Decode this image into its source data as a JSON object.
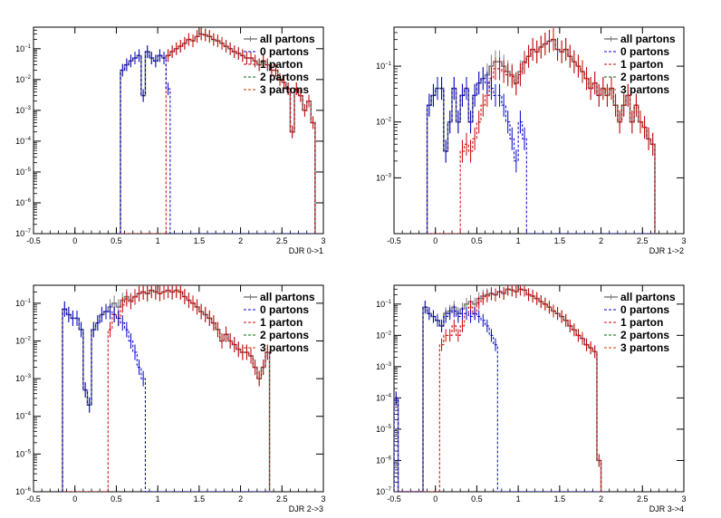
{
  "colors": {
    "all": "#808080",
    "p0": "#0000cc",
    "p1": "#cc0000",
    "p2": "#006600",
    "p3": "#cc3300"
  },
  "chart_data": [
    {
      "type": "line",
      "xlabel": "DJR 0->1",
      "xlim": [
        -0.5,
        3
      ],
      "ylim": [
        1e-07,
        0.5
      ],
      "yscale": "log",
      "xticks": [
        "-0.5",
        "0",
        "0.5",
        "1",
        "1.5",
        "2",
        "2.5",
        "3"
      ],
      "yticks": [
        "10^-7",
        "10^-6",
        "10^-5",
        "10^-4",
        "10^-3",
        "10^-2",
        "10^-1"
      ],
      "legend": [
        "all partons",
        "0 partons",
        "1 parton",
        "2 partons",
        "3 partons"
      ],
      "legend_position": "top-right",
      "bin_edges": [
        0.55,
        0.6,
        0.65,
        0.7,
        0.75,
        0.8,
        0.85,
        0.9,
        0.95,
        1.0,
        1.05,
        1.1,
        1.15,
        1.2,
        1.25,
        1.3,
        1.35,
        1.4,
        1.45,
        1.5,
        1.55,
        1.6,
        1.65,
        1.7,
        1.75,
        1.8,
        1.85,
        1.9,
        1.95,
        2.0,
        2.05,
        2.1,
        2.15,
        2.2,
        2.25,
        2.3,
        2.35,
        2.4,
        2.45,
        2.5,
        2.55,
        2.6,
        2.65,
        2.7,
        2.75,
        2.8,
        2.85,
        2.9
      ],
      "series": [
        {
          "name": "all partons",
          "values": [
            0.02,
            0.03,
            0.04,
            0.05,
            0.06,
            0.003,
            0.08,
            0.05,
            0.04,
            0.06,
            0.05,
            0.06,
            0.08,
            0.1,
            0.12,
            0.15,
            0.2,
            0.18,
            0.25,
            0.3,
            0.28,
            0.25,
            0.2,
            0.18,
            0.15,
            0.12,
            0.1,
            0.08,
            0.07,
            0.06,
            0.05,
            0.05,
            0.04,
            0.03,
            0.04,
            0.03,
            0.02,
            0.02,
            0.01,
            0.008,
            0.005,
            0.0002,
            0.005,
            0.003,
            0.001,
            0.002,
            0.0004
          ]
        },
        {
          "name": "0 partons",
          "values": [
            0.02,
            0.03,
            0.04,
            0.05,
            0.06,
            0.003,
            0.08,
            0.05,
            0.04,
            0.06,
            0.05,
            0.005,
            0,
            0,
            0,
            0,
            0,
            0,
            0,
            0,
            0,
            0,
            0,
            0,
            0,
            0,
            0,
            0,
            0,
            0,
            0,
            0,
            0,
            0,
            0,
            0,
            0,
            0,
            0,
            0,
            0,
            0,
            0,
            0,
            0,
            0,
            0
          ]
        },
        {
          "name": "1 parton",
          "values": [
            0,
            0,
            0,
            0,
            0,
            0,
            0,
            0,
            0,
            0,
            0,
            0.06,
            0.08,
            0.1,
            0.12,
            0.15,
            0.2,
            0.18,
            0.25,
            0.3,
            0.28,
            0.25,
            0.2,
            0.18,
            0.15,
            0.12,
            0.1,
            0.08,
            0.07,
            0.06,
            0.05,
            0.05,
            0.04,
            0.03,
            0.04,
            0.03,
            0.02,
            0.02,
            0.01,
            0.008,
            0.005,
            0.0002,
            0.005,
            0.003,
            0.001,
            0.002,
            0.0004
          ]
        }
      ]
    },
    {
      "type": "line",
      "xlabel": "DJR 1->2",
      "xlim": [
        -0.5,
        3
      ],
      "ylim": [
        0.0001,
        0.5
      ],
      "yscale": "log",
      "xticks": [
        "-0.5",
        "0",
        "0.5",
        "1",
        "1.5",
        "2",
        "2.5",
        "3"
      ],
      "yticks": [
        "10^-3",
        "10^-2",
        "10^-1"
      ],
      "legend": [
        "all partons",
        "0 partons",
        "1 parton",
        "2 partons",
        "3 partons"
      ],
      "legend_position": "top-right",
      "bin_edges": [
        -0.1,
        -0.05,
        0.0,
        0.05,
        0.1,
        0.15,
        0.2,
        0.25,
        0.3,
        0.35,
        0.4,
        0.45,
        0.5,
        0.55,
        0.6,
        0.65,
        0.7,
        0.75,
        0.8,
        0.85,
        0.9,
        0.95,
        1.0,
        1.05,
        1.1,
        1.15,
        1.2,
        1.25,
        1.3,
        1.35,
        1.4,
        1.45,
        1.5,
        1.55,
        1.6,
        1.65,
        1.7,
        1.75,
        1.8,
        1.85,
        1.9,
        1.95,
        2.0,
        2.05,
        2.1,
        2.15,
        2.2,
        2.25,
        2.3,
        2.35,
        2.4,
        2.45,
        2.5,
        2.55,
        2.6,
        2.65
      ],
      "series": [
        {
          "name": "all partons",
          "values": [
            0.02,
            0.03,
            0.04,
            0.04,
            0.003,
            0.01,
            0.04,
            0.01,
            0.03,
            0.04,
            0.01,
            0.03,
            0.05,
            0.06,
            0.07,
            0.1,
            0.12,
            0.12,
            0.1,
            0.08,
            0.07,
            0.05,
            0.08,
            0.12,
            0.15,
            0.2,
            0.18,
            0.22,
            0.25,
            0.28,
            0.3,
            0.2,
            0.18,
            0.2,
            0.15,
            0.12,
            0.1,
            0.08,
            0.06,
            0.04,
            0.05,
            0.03,
            0.04,
            0.03,
            0.04,
            0.02,
            0.01,
            0.02,
            0.03,
            0.01,
            0.02,
            0.01,
            0.008,
            0.005,
            0.004
          ]
        },
        {
          "name": "0 partons",
          "values": [
            0.02,
            0.03,
            0.04,
            0.04,
            0.003,
            0.01,
            0.04,
            0.01,
            0.03,
            0.04,
            0.01,
            0.03,
            0.05,
            0.06,
            0.05,
            0.04,
            0.03,
            0.03,
            0.02,
            0.01,
            0.005,
            0.002,
            0.01,
            0.005,
            0,
            0,
            0,
            0,
            0,
            0,
            0,
            0,
            0,
            0,
            0,
            0,
            0,
            0,
            0,
            0,
            0,
            0,
            0,
            0,
            0,
            0,
            0,
            0,
            0,
            0,
            0,
            0,
            0,
            0,
            0
          ]
        },
        {
          "name": "1 parton",
          "values": [
            0,
            0,
            0,
            0,
            0,
            0,
            0,
            0,
            0.003,
            0.004,
            0.003,
            0.005,
            0.01,
            0.02,
            0.03,
            0.06,
            0.09,
            0.09,
            0.08,
            0.07,
            0.065,
            0.048,
            0.07,
            0.115,
            0.15,
            0.2,
            0.18,
            0.22,
            0.25,
            0.28,
            0.3,
            0.2,
            0.18,
            0.2,
            0.15,
            0.12,
            0.1,
            0.08,
            0.06,
            0.04,
            0.05,
            0.03,
            0.04,
            0.03,
            0.04,
            0.02,
            0.01,
            0.02,
            0.03,
            0.01,
            0.02,
            0.01,
            0.008,
            0.005,
            0.004
          ]
        }
      ]
    },
    {
      "type": "line",
      "xlabel": "DJR 2->3",
      "xlim": [
        -0.5,
        3
      ],
      "ylim": [
        1e-06,
        0.3
      ],
      "yscale": "log",
      "xticks": [
        "-0.5",
        "0",
        "0.5",
        "1",
        "1.5",
        "2",
        "2.5",
        "3"
      ],
      "yticks": [
        "10^-6",
        "10^-5",
        "10^-4",
        "10^-3",
        "10^-2",
        "10^-1"
      ],
      "legend": [
        "all partons",
        "0 partons",
        "1 parton",
        "2 partons",
        "3 partons"
      ],
      "legend_position": "top-right",
      "bin_edges": [
        -0.15,
        -0.1,
        -0.05,
        0.0,
        0.05,
        0.1,
        0.15,
        0.2,
        0.25,
        0.3,
        0.35,
        0.4,
        0.45,
        0.5,
        0.55,
        0.6,
        0.65,
        0.7,
        0.75,
        0.8,
        0.85,
        0.9,
        0.95,
        1.0,
        1.05,
        1.1,
        1.15,
        1.2,
        1.25,
        1.3,
        1.35,
        1.4,
        1.45,
        1.5,
        1.55,
        1.6,
        1.65,
        1.7,
        1.75,
        1.8,
        1.85,
        1.9,
        1.95,
        2.0,
        2.05,
        2.1,
        2.15,
        2.2,
        2.25,
        2.3,
        2.35
      ],
      "series": [
        {
          "name": "all partons",
          "values": [
            0.07,
            0.05,
            0.04,
            0.04,
            0.02,
            0.0005,
            0.0002,
            0.02,
            0.03,
            0.05,
            0.06,
            0.08,
            0.1,
            0.08,
            0.12,
            0.15,
            0.12,
            0.15,
            0.18,
            0.2,
            0.18,
            0.22,
            0.2,
            0.18,
            0.2,
            0.22,
            0.2,
            0.22,
            0.2,
            0.15,
            0.12,
            0.1,
            0.08,
            0.06,
            0.05,
            0.04,
            0.03,
            0.02,
            0.01,
            0.015,
            0.01,
            0.008,
            0.006,
            0.005,
            0.005,
            0.004,
            0.002,
            0.001,
            0.002,
            0.005
          ]
        },
        {
          "name": "0 partons",
          "values": [
            0.07,
            0.05,
            0.04,
            0.04,
            0.02,
            0.0005,
            0.0002,
            0.02,
            0.03,
            0.05,
            0.06,
            0.06,
            0.05,
            0.04,
            0.03,
            0.02,
            0.01,
            0.005,
            0.002,
            0.001,
            0,
            0,
            0,
            0,
            0,
            0,
            0,
            0,
            0,
            0,
            0,
            0,
            0,
            0,
            0,
            0,
            0,
            0,
            0,
            0,
            0,
            0,
            0,
            0,
            0,
            0,
            0,
            0,
            0,
            0
          ]
        },
        {
          "name": "1 parton",
          "values": [
            0,
            0,
            0,
            0,
            0,
            0,
            0,
            0,
            0,
            0,
            0,
            0.02,
            0.05,
            0.04,
            0.09,
            0.13,
            0.11,
            0.145,
            0.178,
            0.199,
            0.18,
            0.22,
            0.2,
            0.18,
            0.2,
            0.22,
            0.2,
            0.22,
            0.2,
            0.15,
            0.12,
            0.1,
            0.08,
            0.06,
            0.05,
            0.04,
            0.03,
            0.02,
            0.01,
            0.015,
            0.01,
            0.008,
            0.006,
            0.005,
            0.005,
            0.004,
            0.002,
            0.001,
            0.002,
            0.005
          ]
        }
      ]
    },
    {
      "type": "line",
      "xlabel": "DJR 3->4",
      "xlim": [
        -0.5,
        3
      ],
      "ylim": [
        1e-07,
        0.4
      ],
      "yscale": "log",
      "xticks": [
        "-0.5",
        "0",
        "0.5",
        "1",
        "1.5",
        "2",
        "2.5",
        "3"
      ],
      "yticks": [
        "10^-7",
        "10^-6",
        "10^-5",
        "10^-4",
        "10^-3",
        "10^-2",
        "10^-1"
      ],
      "legend": [
        "all partons",
        "0 partons",
        "1 parton",
        "2 partons",
        "3 partons"
      ],
      "legend_position": "top-right",
      "bin_edges": [
        -0.5,
        -0.45,
        -0.15,
        -0.1,
        -0.05,
        0.0,
        0.05,
        0.1,
        0.15,
        0.2,
        0.25,
        0.3,
        0.35,
        0.4,
        0.45,
        0.5,
        0.55,
        0.6,
        0.65,
        0.7,
        0.75,
        0.8,
        0.85,
        0.9,
        0.95,
        1.0,
        1.05,
        1.1,
        1.15,
        1.2,
        1.25,
        1.3,
        1.35,
        1.4,
        1.45,
        1.5,
        1.55,
        1.6,
        1.65,
        1.7,
        1.75,
        1.8,
        1.85,
        1.9,
        1.95,
        2.0
      ],
      "series": [
        {
          "name": "all partons",
          "values": [
            0.0001,
            0,
            0.08,
            0.05,
            0.04,
            0.03,
            0.02,
            0.05,
            0.06,
            0.08,
            0.05,
            0.07,
            0.1,
            0.12,
            0.1,
            0.15,
            0.18,
            0.2,
            0.22,
            0.2,
            0.25,
            0.22,
            0.3,
            0.28,
            0.25,
            0.3,
            0.28,
            0.2,
            0.18,
            0.15,
            0.12,
            0.1,
            0.08,
            0.06,
            0.05,
            0.04,
            0.03,
            0.02,
            0.015,
            0.01,
            0.008,
            0.005,
            0.004,
            0.003,
            1e-06
          ]
        },
        {
          "name": "0 partons",
          "values": [
            0.0001,
            0,
            0.08,
            0.05,
            0.04,
            0.03,
            0.02,
            0.04,
            0.05,
            0.06,
            0.04,
            0.05,
            0.05,
            0.04,
            0.05,
            0.04,
            0.03,
            0.02,
            0.01,
            0.005,
            0,
            0,
            0,
            0,
            0,
            0,
            0,
            0,
            0,
            0,
            0,
            0,
            0,
            0,
            0,
            0,
            0,
            0,
            0,
            0,
            0,
            0,
            0,
            0,
            0
          ]
        },
        {
          "name": "1 parton",
          "values": [
            0,
            0,
            0,
            0,
            0,
            0,
            0.005,
            0.01,
            0.01,
            0.02,
            0.01,
            0.02,
            0.05,
            0.08,
            0.05,
            0.11,
            0.15,
            0.18,
            0.21,
            0.195,
            0.25,
            0.22,
            0.3,
            0.28,
            0.25,
            0.3,
            0.28,
            0.2,
            0.18,
            0.15,
            0.12,
            0.1,
            0.08,
            0.06,
            0.05,
            0.04,
            0.03,
            0.02,
            0.015,
            0.01,
            0.008,
            0.005,
            0.004,
            0.003,
            1e-06
          ]
        }
      ]
    }
  ]
}
